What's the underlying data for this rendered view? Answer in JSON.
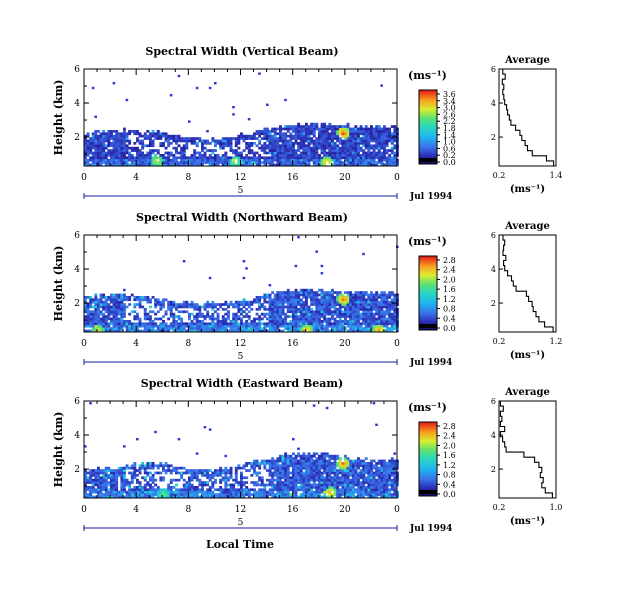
{
  "figure": {
    "x_axis_title": "Local Time",
    "date_label": "Jul 1994",
    "unit_label": "(ms⁻¹)",
    "avg_title": "Average",
    "avg_xlabel": "(ms⁻¹)"
  },
  "chart_data": [
    {
      "type": "heatmap",
      "title": "Spectral Width (Vertical Beam)",
      "ylabel": "Height (km)",
      "xlabel": "Local Time",
      "x_ticks": [
        "0",
        "4",
        "8",
        "12",
        "16",
        "20",
        "0"
      ],
      "xlim": [
        0,
        24
      ],
      "y_ticks": [
        "6",
        "4",
        "2"
      ],
      "ylim": [
        0.3,
        6.0
      ],
      "day_label": "5",
      "date_label": "Jul 1994",
      "colorbar": {
        "label": "(ms⁻¹)",
        "ticks": [
          "3.6",
          "3.4",
          "3.0",
          "2.6",
          "2.2",
          "1.8",
          "1.4",
          "1.0",
          "0.6",
          "0.2",
          "0.0"
        ],
        "range": [
          0.0,
          3.6
        ]
      },
      "top_profile": {
        "t": [
          0,
          2,
          4,
          6,
          8,
          10,
          12,
          14,
          16,
          18,
          20,
          22,
          24
        ],
        "h": [
          2.3,
          2.45,
          2.5,
          2.3,
          2.05,
          1.95,
          2.2,
          2.6,
          2.8,
          2.9,
          2.75,
          2.7,
          2.7
        ]
      },
      "hotspots": [
        {
          "t": 19.8,
          "h": 2.3,
          "w": 3.6
        },
        {
          "t": 5.5,
          "h": 0.7,
          "w": 2.8
        },
        {
          "t": 11.5,
          "h": 0.6,
          "w": 2.5
        },
        {
          "t": 18.5,
          "h": 0.6,
          "w": 3.2
        }
      ],
      "average_profile": {
        "title": "Average",
        "xlabel": "(ms⁻¹)",
        "x_ticks": [
          "0.2",
          "1.4"
        ],
        "xlim": [
          0.2,
          1.4
        ],
        "y_ticks": [
          "6",
          "4",
          "2"
        ],
        "ylim": [
          0.3,
          6.0
        ],
        "height": [
          0.3,
          0.6,
          0.9,
          1.2,
          1.5,
          1.8,
          2.1,
          2.4,
          2.7,
          3.0,
          3.3,
          3.6,
          3.9,
          4.2,
          4.5,
          4.8,
          5.1,
          5.4,
          5.7,
          6.0
        ],
        "value": [
          1.35,
          1.2,
          0.9,
          0.8,
          0.75,
          0.68,
          0.64,
          0.55,
          0.45,
          0.42,
          0.38,
          0.36,
          0.32,
          0.3,
          0.28,
          0.3,
          0.27,
          0.33,
          0.28,
          0.3
        ]
      }
    },
    {
      "type": "heatmap",
      "title": "Spectral Width (Northward Beam)",
      "ylabel": "Height (km)",
      "xlabel": "Local Time",
      "x_ticks": [
        "0",
        "4",
        "8",
        "12",
        "16",
        "20",
        "0"
      ],
      "xlim": [
        0,
        24
      ],
      "y_ticks": [
        "6",
        "4",
        "2"
      ],
      "ylim": [
        0.3,
        6.0
      ],
      "day_label": "5",
      "date_label": "Jul 1994",
      "colorbar": {
        "label": "(ms⁻¹)",
        "ticks": [
          "2.8",
          "2.4",
          "2.0",
          "1.6",
          "1.2",
          "0.8",
          "0.4",
          "0.0"
        ],
        "range": [
          0.0,
          2.8
        ]
      },
      "top_profile": {
        "t": [
          0,
          2,
          4,
          6,
          8,
          10,
          12,
          14,
          16,
          18,
          20,
          22,
          24
        ],
        "h": [
          2.5,
          2.6,
          2.55,
          2.3,
          2.1,
          2.05,
          2.2,
          2.6,
          2.9,
          2.85,
          2.7,
          2.75,
          2.7
        ]
      },
      "hotspots": [
        {
          "t": 19.8,
          "h": 2.3,
          "w": 2.7
        },
        {
          "t": 1.0,
          "h": 0.5,
          "w": 2.2
        },
        {
          "t": 17.0,
          "h": 0.5,
          "w": 2.5
        },
        {
          "t": 22.5,
          "h": 0.5,
          "w": 2.6
        }
      ],
      "average_profile": {
        "title": "Average",
        "xlabel": "(ms⁻¹)",
        "x_ticks": [
          "0.2",
          "1.2"
        ],
        "xlim": [
          0.2,
          1.2
        ],
        "y_ticks": [
          "6",
          "4",
          "2"
        ],
        "ylim": [
          0.3,
          6.0
        ],
        "height": [
          0.3,
          0.6,
          0.9,
          1.2,
          1.5,
          1.8,
          2.1,
          2.4,
          2.7,
          3.0,
          3.3,
          3.6,
          3.9,
          4.2,
          4.5,
          4.8,
          5.1,
          5.4,
          5.7,
          6.0
        ],
        "value": [
          1.15,
          1.0,
          0.9,
          0.85,
          0.8,
          0.78,
          0.72,
          0.68,
          0.5,
          0.45,
          0.42,
          0.35,
          0.3,
          0.28,
          0.32,
          0.27,
          0.28,
          0.3,
          0.27,
          0.28
        ]
      }
    },
    {
      "type": "heatmap",
      "title": "Spectral Width (Eastward Beam)",
      "ylabel": "Height (km)",
      "xlabel": "Local Time",
      "x_ticks": [
        "0",
        "4",
        "8",
        "12",
        "16",
        "20",
        "0"
      ],
      "xlim": [
        0,
        24
      ],
      "y_ticks": [
        "6",
        "4",
        "2"
      ],
      "ylim": [
        0.3,
        6.0
      ],
      "day_label": "5",
      "date_label": "Jul 1994",
      "colorbar": {
        "label": "(ms⁻¹)",
        "ticks": [
          "2.8",
          "2.4",
          "2.0",
          "1.6",
          "1.2",
          "0.8",
          "0.4",
          "0.0"
        ],
        "range": [
          0.0,
          2.8
        ]
      },
      "top_profile": {
        "t": [
          0,
          2,
          4,
          6,
          8,
          10,
          12,
          14,
          16,
          18,
          20,
          22,
          24
        ],
        "h": [
          2.0,
          2.1,
          2.4,
          2.4,
          2.1,
          2.0,
          2.4,
          2.7,
          3.0,
          3.0,
          2.8,
          2.6,
          2.6
        ]
      },
      "hotspots": [
        {
          "t": 19.8,
          "h": 2.4,
          "w": 2.7
        },
        {
          "t": 18.8,
          "h": 0.7,
          "w": 2.5
        },
        {
          "t": 6.0,
          "h": 0.6,
          "w": 1.8
        }
      ],
      "average_profile": {
        "title": "Average",
        "xlabel": "(ms⁻¹)",
        "x_ticks": [
          "0.2",
          "1.0"
        ],
        "xlim": [
          0.2,
          1.0
        ],
        "y_ticks": [
          "6",
          "4",
          "2"
        ],
        "ylim": [
          0.3,
          6.0
        ],
        "height": [
          0.3,
          0.6,
          0.9,
          1.2,
          1.5,
          1.8,
          2.1,
          2.4,
          2.7,
          3.0,
          3.3,
          3.6,
          3.9,
          4.2,
          4.5,
          4.8,
          5.1,
          5.4,
          5.7,
          6.0
        ],
        "value": [
          0.95,
          0.85,
          0.8,
          0.82,
          0.78,
          0.8,
          0.76,
          0.7,
          0.55,
          0.3,
          0.28,
          0.25,
          0.22,
          0.28,
          0.22,
          0.24,
          0.22,
          0.26,
          0.22,
          0.23
        ]
      }
    }
  ]
}
